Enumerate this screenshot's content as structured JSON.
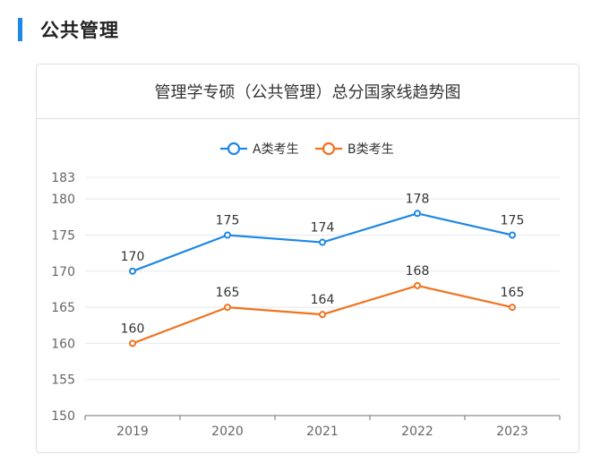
{
  "section": {
    "title": "公共管理"
  },
  "card": {
    "title": "管理学专硕（公共管理）总分国家线趋势图"
  },
  "chart_data": {
    "type": "line",
    "title": "管理学专硕（公共管理）总分国家线趋势图",
    "categories": [
      "2019",
      "2020",
      "2021",
      "2022",
      "2023"
    ],
    "series": [
      {
        "name": "A类考生",
        "values": [
          170,
          175,
          174,
          178,
          175
        ],
        "color": "#1e88e5"
      },
      {
        "name": "B类考生",
        "values": [
          160,
          165,
          164,
          168,
          165
        ],
        "color": "#f0731f"
      }
    ],
    "ylim": [
      150,
      183
    ],
    "yticks": [
      150,
      155,
      160,
      165,
      170,
      175,
      180,
      183
    ],
    "grid": true,
    "legend": "top-center",
    "data_labels": true
  }
}
